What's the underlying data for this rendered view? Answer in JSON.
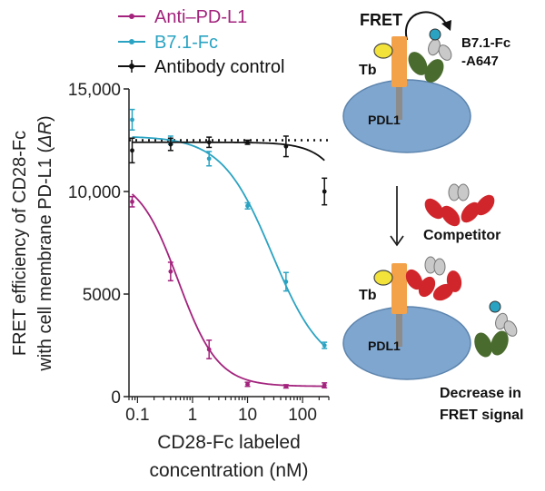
{
  "chart_data": {
    "type": "line",
    "xscale": "log",
    "xlim": [
      0.07,
      300
    ],
    "ylim": [
      0,
      15000
    ],
    "xticks": [
      0.1,
      1,
      10,
      100
    ],
    "xtick_labels": [
      "0.1",
      "1",
      "10",
      "100"
    ],
    "yticks": [
      0,
      5000,
      10000,
      15000
    ],
    "ytick_labels": [
      "0",
      "5000",
      "10,000",
      "15,000"
    ],
    "ylabel_line1": "FRET efficiency of CD28-Fc",
    "ylabel_line2_prefix": "with cell membrane PD-L1 (",
    "ylabel_line2_symbol": "ΔR",
    "ylabel_line2_suffix": ")",
    "xlabel_line1": "CD28-Fc labeled",
    "xlabel_line2": "concentration (nM)",
    "reference_line_y": 12500,
    "legend_position": "top-left",
    "series": [
      {
        "name": "Anti–PD-L1",
        "color": "#a3237d",
        "x": [
          0.08,
          0.4,
          2,
          10,
          50,
          250
        ],
        "y": [
          9500,
          6100,
          2300,
          600,
          500,
          550
        ],
        "err": [
          250,
          450,
          450,
          100,
          80,
          120
        ],
        "fit": {
          "top": 10800,
          "bottom": 500,
          "ec50": 0.55,
          "hill": 1.2
        }
      },
      {
        "name": "B7.1-Fc",
        "color": "#2aa3c2",
        "x": [
          0.08,
          0.4,
          2,
          10,
          50,
          250
        ],
        "y": [
          13500,
          12500,
          11600,
          9300,
          5600,
          2500
        ],
        "err": [
          500,
          200,
          350,
          150,
          450,
          150
        ],
        "fit": {
          "top": 12700,
          "bottom": 1200,
          "ec50": 28,
          "hill": 0.95
        }
      },
      {
        "name": "Antibody control",
        "color": "#111111",
        "x": [
          0.08,
          0.4,
          2,
          10,
          50,
          250
        ],
        "y": [
          12000,
          12300,
          12400,
          12400,
          12200,
          10000
        ],
        "err": [
          600,
          300,
          250,
          100,
          500,
          650
        ],
        "fit": {
          "top": 12400,
          "bottom": 0,
          "ec50": 1800,
          "hill": 1.3
        }
      }
    ]
  },
  "diagram": {
    "fret_label": "FRET",
    "acceptor_label_line1": "B7.1-Fc",
    "acceptor_label_line2": "-A647",
    "tb_label_top": "Tb",
    "pdl1_label_top": "PDL1",
    "competitor_label": "Competitor",
    "tb_label_bottom": "Tb",
    "pdl1_label_bottom": "PDL1",
    "result_line1": "Decrease in",
    "result_line2": "FRET signal",
    "colors": {
      "cell": "#7fa6cf",
      "cell_stroke": "#5c84ad",
      "receptor": "#f4a24a",
      "receptor_stem": "#8c8c8c",
      "donor": "#f2e23a",
      "antibody_dark": "#4a6b2e",
      "antibody_light": "#c9c9c9",
      "acceptor_dye": "#2aa3c2",
      "competitor": "#d0262b"
    }
  }
}
